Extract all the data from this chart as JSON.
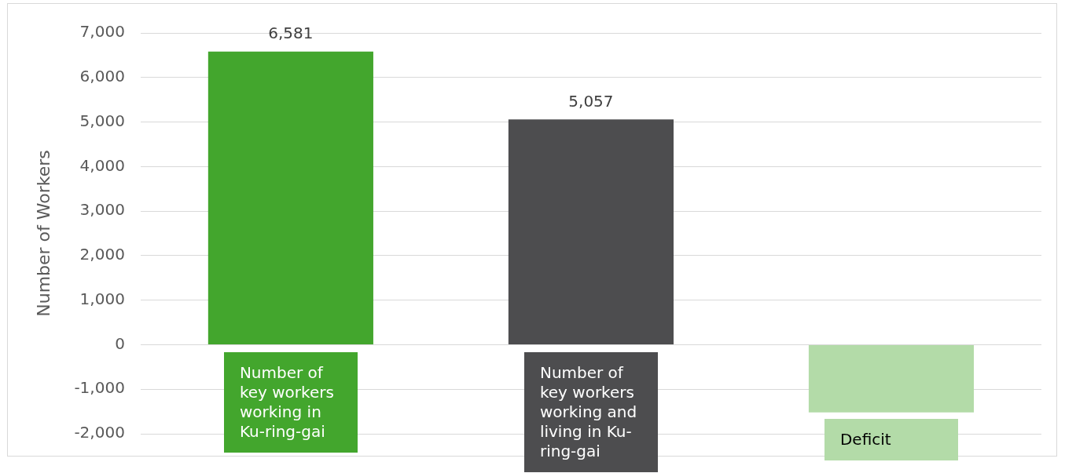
{
  "chart_data": {
    "type": "bar",
    "ylabel": "Number of Workers",
    "categories": [
      "Number of key workers working in Ku-ring-gai",
      "Number of key workers working and living in Ku-ring-gai",
      "Deficit"
    ],
    "values": [
      6581,
      5057,
      -1520
    ],
    "colors": [
      "#43a62d",
      "#4d4d4f",
      "#b3dba8"
    ],
    "value_labels": [
      "6,581",
      "5,057",
      null
    ],
    "ylim": [
      -2000,
      7000
    ],
    "yticks": [
      {
        "value": -2000,
        "label": "-2,000"
      },
      {
        "value": -1000,
        "label": "-1,000"
      },
      0,
      {
        "value": 1000,
        "label": "1,000"
      },
      {
        "value": 2000,
        "label": "2,000"
      },
      {
        "value": 3000,
        "label": "3,000"
      },
      {
        "value": 4000,
        "label": "4,000"
      },
      {
        "value": 5000,
        "label": "5,000"
      },
      {
        "value": 6000,
        "label": "6,000"
      },
      {
        "value": 7000,
        "label": "7,000"
      }
    ],
    "grid": "y",
    "legend": false
  }
}
